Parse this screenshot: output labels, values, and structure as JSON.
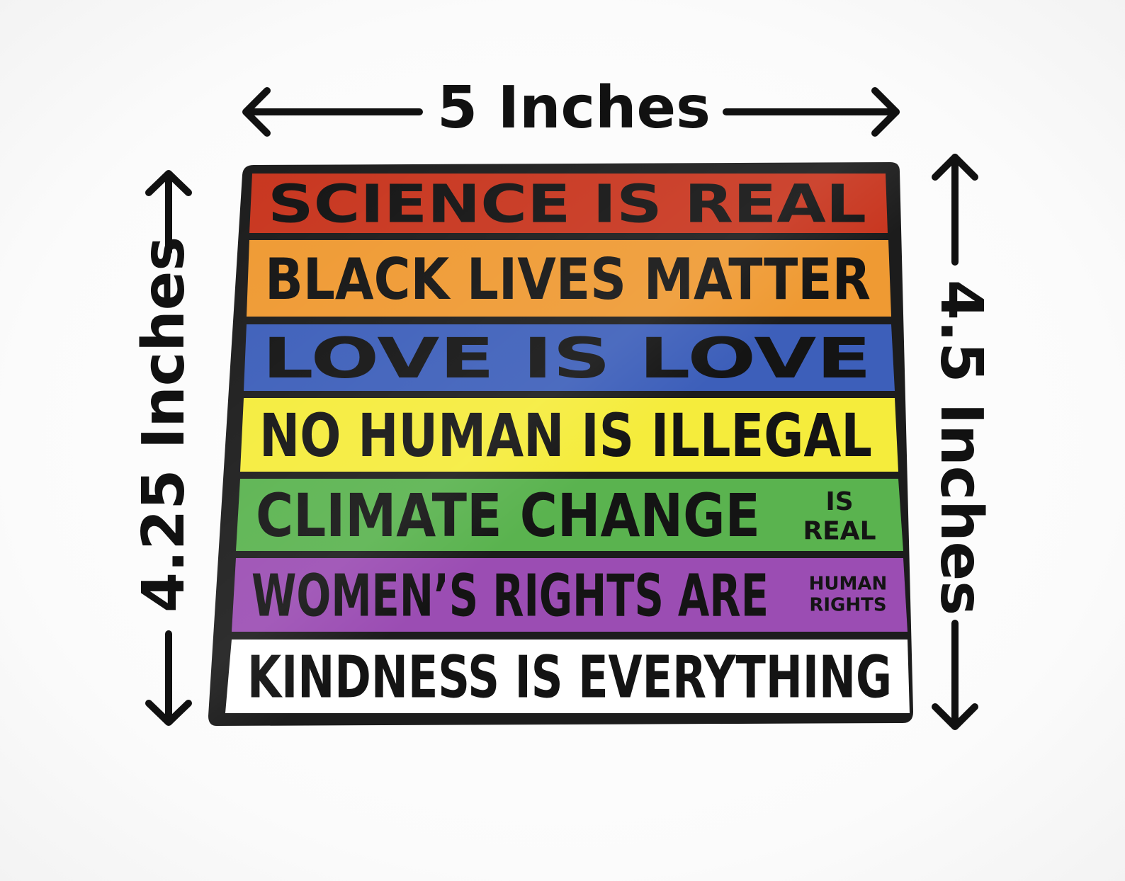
{
  "dimensions": {
    "width_label": "5 Inches",
    "left_height_label": "4.25 Inches",
    "right_height_label": "4.5 Inches"
  },
  "sticker": {
    "rows": [
      {
        "text": "SCIENCE IS REAL",
        "color": "#c8361f"
      },
      {
        "text": "BLACK LIVES MATTER",
        "color": "#ef9a33"
      },
      {
        "text": "LOVE IS LOVE",
        "color": "#3d5fba"
      },
      {
        "text": "NO HUMAN IS ILLEGAL",
        "color": "#f5ec3c"
      },
      {
        "text": "CLIMATE CHANGE",
        "suffix_top": "IS",
        "suffix_bottom": "REAL",
        "color": "#5ab34f"
      },
      {
        "text": "WOMEN’S RIGHTS ARE",
        "suffix_top": "HUMAN",
        "suffix_bottom": "RIGHTS",
        "color": "#9b4db3"
      },
      {
        "text": "KINDNESS IS EVERYTHING",
        "color": "#ffffff"
      }
    ],
    "border_color": "#1c1c1c"
  }
}
